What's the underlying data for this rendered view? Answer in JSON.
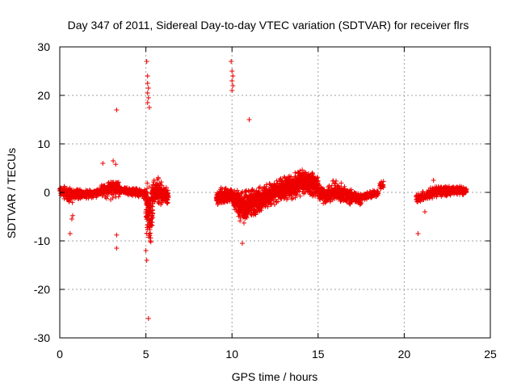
{
  "chart_data": {
    "type": "scatter",
    "title": "Day 347 of 2011, Sidereal Day-to-day VTEC variation (SDTVAR) for receiver flrs",
    "xlabel": "GPS time / hours",
    "ylabel": "SDTVAR / TECUs",
    "xlim": [
      0,
      25
    ],
    "ylim": [
      -30,
      30
    ],
    "xticks": [
      0,
      5,
      10,
      15,
      20,
      25
    ],
    "yticks": [
      -30,
      -20,
      -10,
      0,
      10,
      20,
      30
    ],
    "xtick_labels": [
      "0",
      "5",
      "10",
      "15",
      "20",
      "25"
    ],
    "ytick_labels": [
      "-30",
      "-20",
      "-10",
      "0",
      "10",
      "20",
      "30"
    ],
    "grid": true,
    "marker": "+",
    "color": "#ee0000",
    "segments": [
      {
        "name": "seg-1",
        "x_start": 0.0,
        "x_end": 2.4,
        "step": 0.02,
        "center": [
          [
            0.0,
            0.3
          ],
          [
            0.5,
            -0.5
          ],
          [
            1.0,
            -0.3
          ],
          [
            1.5,
            -0.4
          ],
          [
            2.0,
            -0.2
          ],
          [
            2.4,
            0.2
          ]
        ],
        "spread": [
          [
            0.0,
            1.0
          ],
          [
            0.6,
            2.5
          ],
          [
            1.0,
            1.2
          ],
          [
            2.4,
            1.0
          ]
        ]
      },
      {
        "name": "seg-2",
        "x_start": 2.4,
        "x_end": 3.5,
        "step": 0.02,
        "center": [
          [
            2.4,
            0.5
          ],
          [
            3.0,
            1.0
          ],
          [
            3.5,
            1.0
          ]
        ],
        "spread": [
          [
            2.4,
            1.5
          ],
          [
            3.0,
            3.0
          ],
          [
            3.5,
            2.0
          ]
        ]
      },
      {
        "name": "seg-3",
        "x_start": 3.5,
        "x_end": 5.0,
        "step": 0.02,
        "center": [
          [
            3.5,
            0.5
          ],
          [
            4.2,
            0.0
          ],
          [
            4.8,
            -0.2
          ],
          [
            5.0,
            -0.5
          ]
        ],
        "spread": [
          [
            3.5,
            1.0
          ],
          [
            5.0,
            1.2
          ]
        ]
      },
      {
        "name": "seg-4",
        "x_start": 5.0,
        "x_end": 5.4,
        "step": 0.01,
        "center": [
          [
            5.0,
            -3.0
          ],
          [
            5.2,
            -5.0
          ],
          [
            5.4,
            -3.0
          ]
        ],
        "spread": [
          [
            5.0,
            6.0
          ],
          [
            5.2,
            10.0
          ],
          [
            5.4,
            5.0
          ]
        ]
      },
      {
        "name": "seg-5",
        "x_start": 5.4,
        "x_end": 6.3,
        "step": 0.015,
        "center": [
          [
            5.4,
            0.5
          ],
          [
            5.8,
            0.0
          ],
          [
            6.3,
            -1.0
          ]
        ],
        "spread": [
          [
            5.4,
            3.0
          ],
          [
            5.8,
            3.5
          ],
          [
            6.3,
            2.0
          ]
        ]
      },
      {
        "name": "seg-6",
        "x_start": 9.1,
        "x_end": 10.0,
        "step": 0.015,
        "center": [
          [
            9.1,
            -1.0
          ],
          [
            9.5,
            -1.0
          ],
          [
            10.0,
            -0.5
          ]
        ],
        "spread": [
          [
            9.1,
            1.5
          ],
          [
            9.5,
            2.5
          ],
          [
            10.0,
            1.5
          ]
        ]
      },
      {
        "name": "seg-7",
        "x_start": 10.0,
        "x_end": 11.8,
        "step": 0.01,
        "center": [
          [
            10.0,
            -1.0
          ],
          [
            10.6,
            -3.0
          ],
          [
            11.2,
            -2.0
          ],
          [
            11.8,
            -1.5
          ]
        ],
        "spread": [
          [
            10.0,
            2.0
          ],
          [
            10.6,
            4.0
          ],
          [
            11.2,
            4.0
          ],
          [
            11.8,
            3.0
          ]
        ]
      },
      {
        "name": "seg-8",
        "x_start": 11.8,
        "x_end": 13.2,
        "step": 0.012,
        "center": [
          [
            11.8,
            -1.0
          ],
          [
            12.5,
            0.0
          ],
          [
            13.2,
            1.0
          ]
        ],
        "spread": [
          [
            11.8,
            2.5
          ],
          [
            12.5,
            3.0
          ],
          [
            13.2,
            3.0
          ]
        ]
      },
      {
        "name": "seg-9",
        "x_start": 13.2,
        "x_end": 15.0,
        "step": 0.012,
        "center": [
          [
            13.2,
            1.0
          ],
          [
            14.0,
            2.0
          ],
          [
            14.5,
            2.0
          ],
          [
            15.0,
            1.0
          ]
        ],
        "spread": [
          [
            13.2,
            3.0
          ],
          [
            14.0,
            3.5
          ],
          [
            15.0,
            2.5
          ]
        ]
      },
      {
        "name": "seg-10",
        "x_start": 15.0,
        "x_end": 17.5,
        "step": 0.02,
        "center": [
          [
            15.0,
            0.0
          ],
          [
            15.5,
            -1.0
          ],
          [
            16.0,
            0.5
          ],
          [
            16.5,
            -0.5
          ],
          [
            17.0,
            -1.0
          ],
          [
            17.5,
            -1.5
          ]
        ],
        "spread": [
          [
            15.0,
            2.0
          ],
          [
            16.0,
            2.5
          ],
          [
            17.0,
            2.0
          ],
          [
            17.5,
            1.5
          ]
        ]
      },
      {
        "name": "seg-11",
        "x_start": 17.5,
        "x_end": 18.5,
        "step": 0.03,
        "center": [
          [
            17.5,
            -1.0
          ],
          [
            18.0,
            -0.5
          ],
          [
            18.5,
            0.0
          ]
        ],
        "spread": [
          [
            17.5,
            1.0
          ],
          [
            18.5,
            0.8
          ]
        ]
      },
      {
        "name": "seg-12",
        "x_start": 18.6,
        "x_end": 18.8,
        "step": 0.03,
        "center": [
          [
            18.6,
            1.5
          ],
          [
            18.8,
            1.5
          ]
        ],
        "spread": [
          [
            18.6,
            1.0
          ],
          [
            18.8,
            1.0
          ]
        ]
      },
      {
        "name": "seg-13",
        "x_start": 20.7,
        "x_end": 21.5,
        "step": 0.03,
        "center": [
          [
            20.7,
            -1.5
          ],
          [
            21.0,
            -1.0
          ],
          [
            21.5,
            -0.3
          ]
        ],
        "spread": [
          [
            20.7,
            1.5
          ],
          [
            21.2,
            1.5
          ],
          [
            21.5,
            1.0
          ]
        ]
      },
      {
        "name": "seg-14",
        "x_start": 21.5,
        "x_end": 23.6,
        "step": 0.02,
        "center": [
          [
            21.5,
            0.0
          ],
          [
            22.5,
            0.3
          ],
          [
            23.0,
            0.5
          ],
          [
            23.6,
            0.3
          ]
        ],
        "spread": [
          [
            21.5,
            1.5
          ],
          [
            22.5,
            1.2
          ],
          [
            23.6,
            1.0
          ]
        ]
      }
    ],
    "outliers": [
      {
        "x": 0.6,
        "y": -8.5
      },
      {
        "x": 0.7,
        "y": -5.5
      },
      {
        "x": 0.75,
        "y": -4.8
      },
      {
        "x": 2.5,
        "y": 6.0
      },
      {
        "x": 3.1,
        "y": 6.5
      },
      {
        "x": 3.25,
        "y": 5.8
      },
      {
        "x": 3.3,
        "y": 17.0
      },
      {
        "x": 3.3,
        "y": -8.8
      },
      {
        "x": 3.3,
        "y": -11.5
      },
      {
        "x": 5.05,
        "y": 27.0
      },
      {
        "x": 5.1,
        "y": 24.0
      },
      {
        "x": 5.1,
        "y": 22.5
      },
      {
        "x": 5.15,
        "y": 21.5
      },
      {
        "x": 5.1,
        "y": 20.5
      },
      {
        "x": 5.15,
        "y": 19.5
      },
      {
        "x": 5.1,
        "y": 18.5
      },
      {
        "x": 5.2,
        "y": 17.5
      },
      {
        "x": 5.0,
        "y": -12.0
      },
      {
        "x": 5.05,
        "y": -14.0
      },
      {
        "x": 5.15,
        "y": -26.0
      },
      {
        "x": 9.95,
        "y": 27.0
      },
      {
        "x": 10.0,
        "y": 25.0
      },
      {
        "x": 10.05,
        "y": 24.0
      },
      {
        "x": 10.0,
        "y": 23.0
      },
      {
        "x": 10.05,
        "y": 22.0
      },
      {
        "x": 10.0,
        "y": 21.0
      },
      {
        "x": 11.0,
        "y": 15.0
      },
      {
        "x": 10.6,
        "y": -10.5
      },
      {
        "x": 20.8,
        "y": -8.5
      },
      {
        "x": 21.7,
        "y": 2.5
      },
      {
        "x": 21.2,
        "y": -4.0
      }
    ]
  }
}
